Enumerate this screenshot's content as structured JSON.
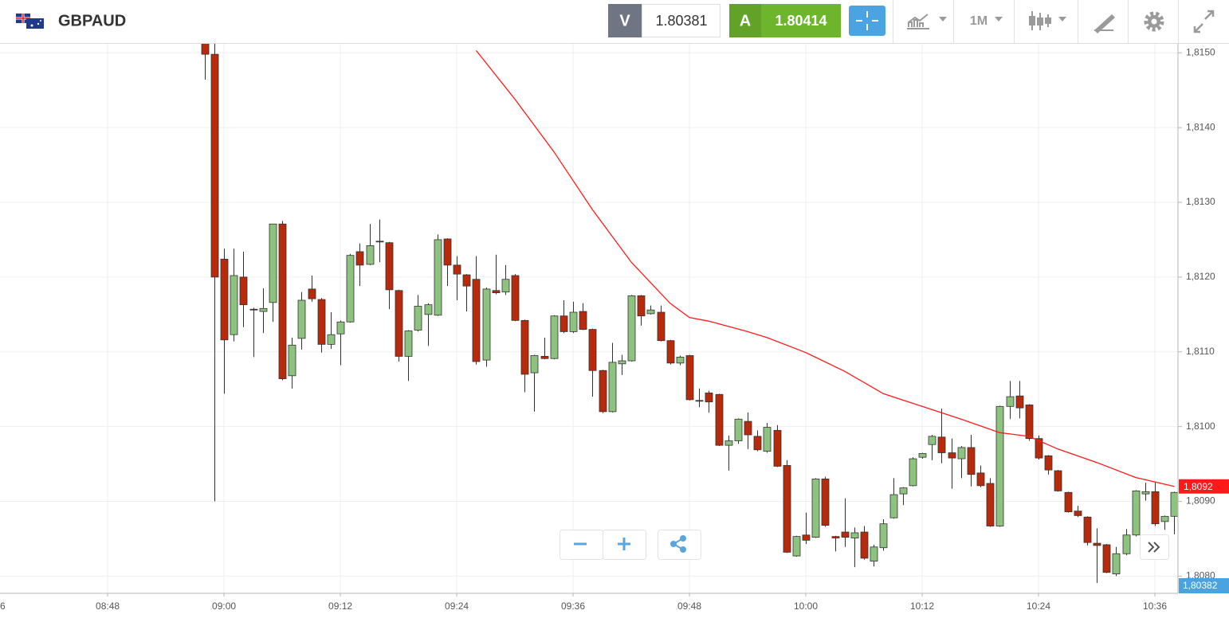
{
  "header": {
    "symbol": "GBPAUD",
    "sell_label": "V",
    "sell_price": "1.80381",
    "buy_label": "A",
    "buy_price": "1.80414",
    "timeframe": "1M"
  },
  "chart_data": {
    "type": "candlestick",
    "up_color": "#8dc37f",
    "down_color": "#b72a0c",
    "x": [
      "08:58",
      "08:59",
      "09:00",
      "09:01",
      "09:02",
      "09:03",
      "09:04",
      "09:05",
      "09:06",
      "09:07",
      "09:08",
      "09:09",
      "09:10",
      "09:11",
      "09:12",
      "09:13",
      "09:14",
      "09:15",
      "09:16",
      "09:17",
      "09:18",
      "09:19",
      "09:20",
      "09:21",
      "09:22",
      "09:23",
      "09:24",
      "09:25",
      "09:26",
      "09:27",
      "09:28",
      "09:29",
      "09:30",
      "09:31",
      "09:32",
      "09:33",
      "09:34",
      "09:35",
      "09:36",
      "09:37",
      "09:38",
      "09:39",
      "09:40",
      "09:41",
      "09:42",
      "09:43",
      "09:44",
      "09:45",
      "09:46",
      "09:47",
      "09:48",
      "09:49",
      "09:50",
      "09:51",
      "09:52",
      "09:53",
      "09:54",
      "09:55",
      "09:56",
      "09:57",
      "09:58",
      "09:59",
      "10:00",
      "10:01",
      "10:02",
      "10:03",
      "10:04",
      "10:05",
      "10:06",
      "10:07",
      "10:08",
      "10:09",
      "10:10",
      "10:11",
      "10:12",
      "10:13",
      "10:14",
      "10:15",
      "10:16",
      "10:17",
      "10:18",
      "10:19",
      "10:20",
      "10:21",
      "10:22",
      "10:23",
      "10:24",
      "10:25",
      "10:26",
      "10:27",
      "10:28",
      "10:29",
      "10:30",
      "10:31",
      "10:32",
      "10:33",
      "10:34",
      "10:35",
      "10:36",
      "10:37",
      "10:38"
    ],
    "open": [
      1.8152,
      1.81498,
      1.81224,
      1.81123,
      1.812,
      1.81157,
      1.81154,
      1.81166,
      1.81271,
      1.81068,
      1.81118,
      1.81184,
      1.8117,
      1.8111,
      1.81124,
      1.8114,
      1.81234,
      1.81217,
      1.81248,
      1.81246,
      1.81182,
      1.81094,
      1.81129,
      1.8115,
      1.81149,
      1.81251,
      1.81216,
      1.81203,
      1.81197,
      1.81089,
      1.81182,
      1.8118,
      1.81202,
      1.81142,
      1.81072,
      1.81094,
      1.81091,
      1.81148,
      1.81127,
      1.81154,
      1.8113,
      1.81075,
      1.8102,
      1.81084,
      1.81088,
      1.81175,
      1.81151,
      1.81153,
      1.81115,
      1.81085,
      1.81095,
      1.81035,
      1.81045,
      1.81043,
      1.80975,
      1.80981,
      1.81007,
      1.80987,
      1.80967,
      1.80995,
      1.80948,
      1.80827,
      1.80855,
      1.80852,
      1.8093,
      1.80853,
      1.80859,
      1.80851,
      1.80859,
      1.8082,
      1.80838,
      1.80878,
      1.8091,
      1.80921,
      1.80959,
      1.80976,
      1.80986,
      1.80965,
      1.80957,
      1.80972,
      1.80938,
      1.80924,
      1.80867,
      1.81027,
      1.81041,
      1.81029,
      1.80984,
      1.80961,
      1.80941,
      1.80912,
      1.80887,
      1.80879,
      1.80844,
      1.80842,
      1.80803,
      1.8083,
      1.80855,
      1.8091,
      1.80913,
      1.80873,
      1.8088
    ],
    "high": [
      1.81525,
      1.8152,
      1.81238,
      1.81238,
      1.81234,
      1.81159,
      1.81185,
      1.81271,
      1.81275,
      1.81119,
      1.8118,
      1.81202,
      1.81172,
      1.81153,
      1.81142,
      1.81231,
      1.81245,
      1.81271,
      1.81277,
      1.81247,
      1.81183,
      1.81129,
      1.81176,
      1.81165,
      1.81257,
      1.81252,
      1.81228,
      1.81204,
      1.81228,
      1.81186,
      1.8123,
      1.81216,
      1.81204,
      1.81143,
      1.81096,
      1.81119,
      1.81149,
      1.81169,
      1.81167,
      1.81165,
      1.81131,
      1.81076,
      1.81112,
      1.81096,
      1.81176,
      1.81176,
      1.81162,
      1.81162,
      1.81116,
      1.81095,
      1.81096,
      1.81051,
      1.81048,
      1.81044,
      1.80988,
      1.81011,
      1.81019,
      1.80995,
      1.81005,
      1.81002,
      1.80955,
      1.80854,
      1.80885,
      1.80931,
      1.80933,
      1.80854,
      1.80904,
      1.80865,
      1.80867,
      1.80842,
      1.80876,
      1.80931,
      1.80919,
      1.80959,
      1.80965,
      1.80989,
      1.81024,
      1.80984,
      1.80974,
      1.80989,
      1.80948,
      1.80931,
      1.81028,
      1.81061,
      1.81061,
      1.8103,
      1.80988,
      1.80962,
      1.80942,
      1.80913,
      1.80894,
      1.8088,
      1.80864,
      1.80843,
      1.80839,
      1.80863,
      1.80915,
      1.80925,
      1.80925,
      1.80881,
      1.80913
    ],
    "low": [
      1.81464,
      1.809,
      1.81044,
      1.81114,
      1.81133,
      1.81093,
      1.81125,
      1.8114,
      1.81062,
      1.81051,
      1.81103,
      1.81167,
      1.81099,
      1.81104,
      1.81082,
      1.81139,
      1.81188,
      1.81216,
      1.8122,
      1.81157,
      1.81087,
      1.81061,
      1.81127,
      1.81108,
      1.81148,
      1.81188,
      1.81169,
      1.81154,
      1.81083,
      1.8108,
      1.81177,
      1.81176,
      1.81141,
      1.81046,
      1.8102,
      1.8109,
      1.8109,
      1.81125,
      1.81125,
      1.81129,
      1.8104,
      1.81018,
      1.81019,
      1.81069,
      1.81087,
      1.81135,
      1.8115,
      1.81114,
      1.81083,
      1.81082,
      1.81035,
      1.81026,
      1.81019,
      1.80974,
      1.80941,
      1.80977,
      1.8097,
      1.80967,
      1.80965,
      1.80946,
      1.80831,
      1.80826,
      1.80843,
      1.80851,
      1.80866,
      1.80833,
      1.80839,
      1.80812,
      1.80822,
      1.80813,
      1.80834,
      1.80877,
      1.80895,
      1.8092,
      1.80957,
      1.80955,
      1.80951,
      1.80917,
      1.80931,
      1.8092,
      1.80919,
      1.80866,
      1.80866,
      1.8101,
      1.81011,
      1.80981,
      1.80956,
      1.80936,
      1.80913,
      1.80885,
      1.80879,
      1.80841,
      1.80791,
      1.80804,
      1.808,
      1.80828,
      1.80853,
      1.80901,
      1.80867,
      1.80862,
      1.80856
    ],
    "close": [
      1.81498,
      1.812,
      1.81116,
      1.81202,
      1.81163,
      1.81156,
      1.81158,
      1.81271,
      1.81064,
      1.81109,
      1.81169,
      1.81171,
      1.8111,
      1.81123,
      1.8114,
      1.81229,
      1.81216,
      1.81242,
      1.81247,
      1.81183,
      1.81094,
      1.81128,
      1.81161,
      1.81163,
      1.8125,
      1.81216,
      1.81204,
      1.81188,
      1.81087,
      1.81184,
      1.81179,
      1.81197,
      1.81142,
      1.8107,
      1.81095,
      1.81091,
      1.81148,
      1.81127,
      1.81153,
      1.8113,
      1.81075,
      1.8102,
      1.81086,
      1.81088,
      1.81175,
      1.81148,
      1.81156,
      1.81115,
      1.81085,
      1.81093,
      1.81036,
      1.81034,
      1.81033,
      1.80975,
      1.80981,
      1.8101,
      1.80989,
      1.80969,
      1.80999,
      1.80947,
      1.80832,
      1.80853,
      1.80848,
      1.8093,
      1.80868,
      1.80851,
      1.80852,
      1.80858,
      1.80824,
      1.80839,
      1.8087,
      1.80909,
      1.80918,
      1.80957,
      1.80964,
      1.80987,
      1.80965,
      1.80958,
      1.80972,
      1.80936,
      1.80921,
      1.80867,
      1.81027,
      1.8104,
      1.81025,
      1.80984,
      1.80958,
      1.80942,
      1.80914,
      1.80886,
      1.80881,
      1.80845,
      1.80841,
      1.80805,
      1.8083,
      1.80855,
      1.80914,
      1.80913,
      1.8087,
      1.8088,
      1.80912
    ],
    "moving_average": {
      "color": "#ff1a1a",
      "x": [
        "09:26",
        "09:30",
        "09:34",
        "09:38",
        "09:42",
        "09:46",
        "09:48",
        "09:50",
        "09:54",
        "09:56",
        "10:00",
        "10:04",
        "10:08",
        "10:12",
        "10:16",
        "10:20",
        "10:23",
        "10:26",
        "10:30",
        "10:34",
        "10:38"
      ],
      "values": [
        1.81503,
        1.81438,
        1.81368,
        1.8129,
        1.8122,
        1.81165,
        1.81146,
        1.81141,
        1.81127,
        1.81119,
        1.81099,
        1.81074,
        1.81044,
        1.81027,
        1.8101,
        1.80992,
        1.80987,
        1.8097,
        1.80952,
        1.80932,
        1.8092
      ],
      "tag": {
        "value": 1.8092,
        "label": "1,8092"
      }
    },
    "bid_tag": "1,80382",
    "xlim": [
      "08:36:54",
      "10:38:23"
    ],
    "xticks": [
      {
        "value": "08:36",
        "label": "6"
      },
      "08:48",
      "09:00",
      "09:12",
      "09:24",
      "09:36",
      "09:48",
      "10:00",
      "10:12",
      "10:24",
      "10:36"
    ],
    "ylim": [
      1.80777,
      1.81512
    ],
    "yticks": [
      {
        "value": 1.815,
        "label": "1,8150"
      },
      {
        "value": 1.814,
        "label": "1,8140"
      },
      {
        "value": 1.813,
        "label": "1,8130"
      },
      {
        "value": 1.812,
        "label": "1,8120"
      },
      {
        "value": 1.811,
        "label": "1,8110"
      },
      {
        "value": 1.81,
        "label": "1,8100"
      },
      {
        "value": 1.809,
        "label": "1,8090"
      },
      {
        "value": 1.808,
        "label": "1,8080"
      }
    ],
    "grid": true
  }
}
